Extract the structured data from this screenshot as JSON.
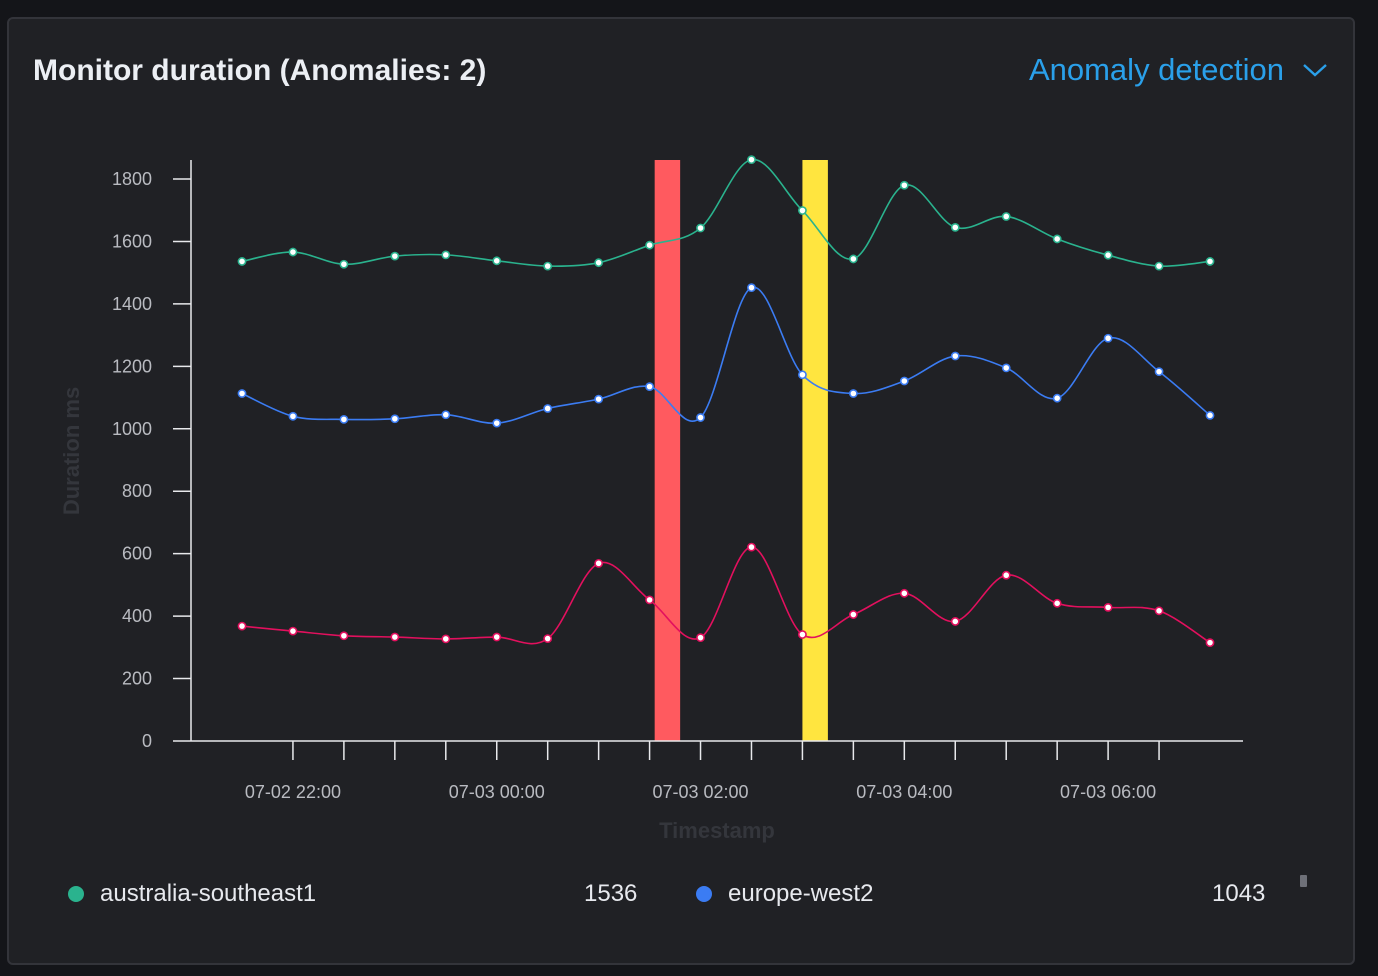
{
  "header": {
    "title": "Monitor duration (Anomalies: 2)",
    "dropdown_label": "Anomaly detection",
    "dropdown_icon": "chevron-down-icon"
  },
  "chart_data": {
    "type": "line",
    "xlabel": "Timestamp",
    "ylabel": "Duration ms",
    "ylim": [
      0,
      1860
    ],
    "yticks": [
      0,
      200,
      400,
      600,
      800,
      1000,
      1200,
      1400,
      1600,
      1800
    ],
    "x": [
      "07-02 21:30",
      "07-02 22:00",
      "07-02 22:30",
      "07-02 23:00",
      "07-02 23:30",
      "07-03 00:00",
      "07-03 00:30",
      "07-03 01:00",
      "07-03 01:30",
      "07-03 02:00",
      "07-03 02:30",
      "07-03 03:00",
      "07-03 03:30",
      "07-03 04:00",
      "07-03 04:30",
      "07-03 05:00",
      "07-03 05:30",
      "07-03 06:00",
      "07-03 06:30",
      "07-03 07:00"
    ],
    "xticks": [
      "07-02 22:00",
      "07-02 22:30",
      "07-02 23:00",
      "07-02 23:30",
      "07-03 00:00",
      "07-03 00:30",
      "07-03 01:00",
      "07-03 01:30",
      "07-03 02:00",
      "07-03 02:30",
      "07-03 03:00",
      "07-03 03:30",
      "07-03 04:00",
      "07-03 04:30",
      "07-03 05:00",
      "07-03 05:30",
      "07-03 06:00",
      "07-03 06:30"
    ],
    "xtick_labels": [
      "07-02 22:00",
      "",
      "",
      "",
      "07-03 00:00",
      "",
      "",
      "",
      "07-03 02:00",
      "",
      "",
      "",
      "07-03 04:00",
      "",
      "",
      "",
      "07-03 06:00",
      ""
    ],
    "anomaly_bands": [
      {
        "from": "07-03 01:33",
        "to": "07-03 01:48",
        "color": "#ff5a5f"
      },
      {
        "from": "07-03 03:00",
        "to": "07-03 03:15",
        "color": "#ffe53f"
      }
    ],
    "series": [
      {
        "name": "australia-southeast1",
        "color": "#2ab38e",
        "values": [
          1536,
          1566,
          1527,
          1553,
          1557,
          1538,
          1521,
          1532,
          1588,
          1643,
          1862,
          1699,
          1544,
          1780,
          1645,
          1680,
          1608,
          1556,
          1521,
          1536
        ]
      },
      {
        "name": "europe-west2",
        "color": "#3b7cf3",
        "values": [
          1113,
          1040,
          1030,
          1032,
          1045,
          1018,
          1065,
          1095,
          1135,
          1036,
          1452,
          1173,
          1113,
          1153,
          1233,
          1195,
          1098,
          1290,
          1183,
          1043
        ]
      },
      {
        "name": "",
        "color": "#e3105e",
        "values": [
          368,
          352,
          337,
          333,
          327,
          333,
          328,
          569,
          452,
          331,
          621,
          341,
          405,
          473,
          383,
          531,
          441,
          428,
          417,
          315
        ]
      }
    ],
    "grid": false
  },
  "legend": [
    {
      "name": "australia-southeast1",
      "value": "1536",
      "color": "#2ab38e"
    },
    {
      "name": "europe-west2",
      "value": "1043",
      "color": "#3b7cf3"
    }
  ]
}
